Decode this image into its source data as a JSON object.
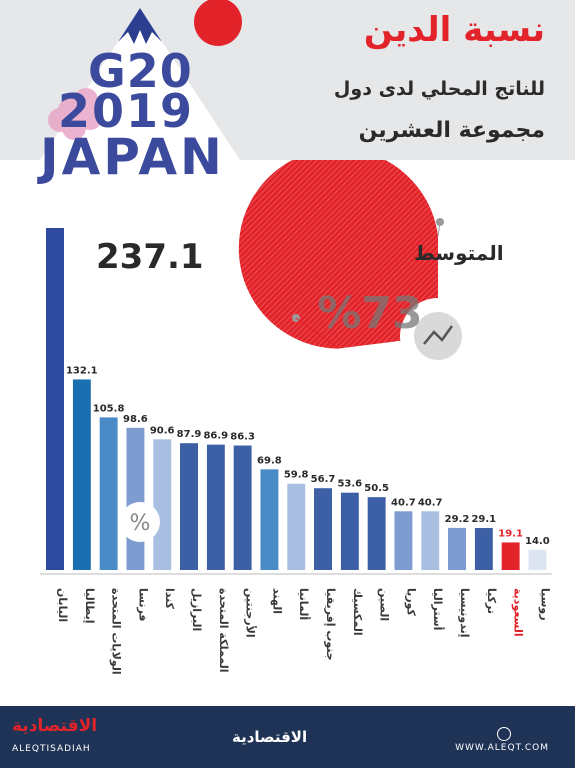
{
  "header": {
    "logo_line1": "G20",
    "logo_line2": "2019",
    "logo_line3": "JAPAN",
    "title": "نسبة الدين",
    "subtitle_line1": "للناتج المحلي لدى دول",
    "subtitle_line2": "مجموعة العشرين"
  },
  "average": {
    "label": "المتوسط",
    "value_text": "%73"
  },
  "percent_symbol": "%",
  "footer": {
    "logo_ar": "الاقتصادية",
    "logo_en": "ALEQTISADIAH",
    "center_ar": "الاقتصادية",
    "url": "WWW.ALEQT.COM"
  },
  "colors": {
    "accent_red": "#e3232a",
    "dark_blue": "#2e4a9e",
    "navy_footer": "#1f3357"
  },
  "chart_data": {
    "type": "bar",
    "title": "نسبة الدين للناتج المحلي لدى دول مجموعة العشرين",
    "categories": [
      "اليابان",
      "إيطاليا",
      "الولايات المتحدة",
      "فرنسا",
      "كندا",
      "البرازيل",
      "المملكة المتحدة",
      "الأرجنتين",
      "الهند",
      "ألمانيا",
      "جنوب إفريقيا",
      "المكسيك",
      "الصين",
      "كوريا",
      "أستراليا",
      "إندونيسيا",
      "تركيا",
      "السعودية",
      "روسيا"
    ],
    "values": [
      237.1,
      132.1,
      105.8,
      98.6,
      90.6,
      87.9,
      86.9,
      86.3,
      69.8,
      59.8,
      56.7,
      53.6,
      50.5,
      40.7,
      40.7,
      29.2,
      29.1,
      19.1,
      14.0
    ],
    "value_labels": [
      "237.1",
      "132.1",
      "105.8",
      "98.6",
      "90.6",
      "87.9",
      "86.9",
      "86.3",
      "69.8",
      "59.8",
      "56.7",
      "53.6",
      "50.5",
      "40.7",
      "40.7",
      "29.2",
      "29.1",
      "19.1",
      "14.0"
    ],
    "highlight": "السعودية",
    "average": 73,
    "ylim": [
      0,
      237.1
    ],
    "grid": false,
    "colors": [
      "#2e4a9e",
      "#1a6fb0",
      "#4a8ac6",
      "#7e9cd0",
      "#a9bfe2",
      "#3d5fa6",
      "#3d5fa6",
      "#3d5fa6",
      "#4a8ac6",
      "#a9bfe2",
      "#3d5fa6",
      "#3d5fa6",
      "#3d5fa6",
      "#7e9cd0",
      "#a9bfe2",
      "#7e9cd0",
      "#3d5fa6",
      "#e3232a",
      "#dde4f2"
    ]
  }
}
